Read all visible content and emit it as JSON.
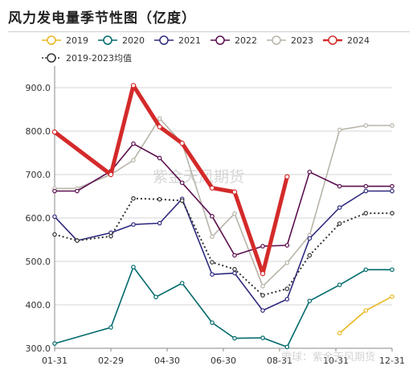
{
  "header": {
    "title": "风力发电量季节性图（亿度）"
  },
  "watermark": {
    "center": "紫金天风期货",
    "bottom": "雪球：紫金天风期货"
  },
  "chart_data": {
    "type": "line",
    "title": "风力发电量季节性图（亿度）",
    "x_ticks": [
      "01-31",
      "02-29",
      "04-30",
      "06-30",
      "08-31",
      "10-31",
      "12-31"
    ],
    "x_tick_index": [
      0,
      1.5,
      3,
      4.5,
      6,
      7.5,
      9
    ],
    "y_ticks": [
      "300.0",
      "400.0",
      "500.0",
      "600.0",
      "700.0",
      "800.0",
      "900.0"
    ],
    "ylim": [
      300,
      950
    ],
    "legend_position": "top-left",
    "grid": "horizontal",
    "series": [
      {
        "name": "2019",
        "color": "#e8b820",
        "style": "solid",
        "x": [
          7.6,
          8.3,
          9.0
        ],
        "y": [
          335,
          387,
          419
        ]
      },
      {
        "name": "2020",
        "color": "#00696b",
        "style": "solid",
        "x": [
          0,
          1.5,
          2.1,
          2.7,
          3.4,
          4.2,
          4.8,
          5.55,
          6.2,
          6.8,
          7.6,
          8.3,
          9.0
        ],
        "y": [
          311,
          348,
          487,
          418,
          450,
          359,
          323,
          324,
          303,
          409,
          446,
          481,
          481
        ]
      },
      {
        "name": "2021",
        "color": "#2e2a7e",
        "style": "solid",
        "x": [
          0,
          0.6,
          1.5,
          2.1,
          2.8,
          3.4,
          4.2,
          4.8,
          5.55,
          6.2,
          6.8,
          7.6,
          8.3,
          9.0
        ],
        "y": [
          603,
          548,
          566,
          585,
          588,
          644,
          470,
          473,
          387,
          413,
          553,
          624,
          662,
          662
        ]
      },
      {
        "name": "2022",
        "color": "#5b0f4e",
        "style": "solid",
        "x": [
          0,
          0.6,
          1.5,
          2.1,
          2.8,
          3.4,
          4.2,
          4.8,
          5.55,
          6.2,
          6.8,
          7.6,
          8.3,
          9.0
        ],
        "y": [
          662,
          662,
          708,
          771,
          738,
          681,
          604,
          514,
          535,
          537,
          706,
          673,
          673,
          673
        ]
      },
      {
        "name": "2023",
        "color": "#b8b4a8",
        "style": "solid",
        "x": [
          0,
          0.6,
          1.5,
          2.1,
          2.8,
          3.4,
          4.2,
          4.8,
          5.55,
          6.2,
          6.8,
          7.6,
          8.3,
          9.0
        ],
        "y": [
          668,
          668,
          700,
          733,
          829,
          772,
          557,
          610,
          443,
          497,
          560,
          803,
          813,
          813
        ]
      },
      {
        "name": "2024",
        "color": "#d42a2a",
        "style": "bold",
        "x": [
          0,
          1.5,
          2.1,
          2.8,
          3.4,
          4.2,
          4.8,
          5.55,
          6.2
        ],
        "y": [
          798,
          700,
          905,
          810,
          772,
          669,
          660,
          472,
          695
        ]
      },
      {
        "name": "2019-2023均值",
        "color": "#333333",
        "style": "dotted",
        "x": [
          0,
          0.6,
          1.5,
          2.1,
          2.8,
          3.4,
          4.2,
          4.8,
          5.55,
          6.2,
          6.8,
          7.6,
          8.3,
          9.0
        ],
        "y": [
          562,
          548,
          558,
          645,
          643,
          640,
          498,
          482,
          422,
          437,
          514,
          587,
          611,
          611
        ]
      }
    ]
  }
}
